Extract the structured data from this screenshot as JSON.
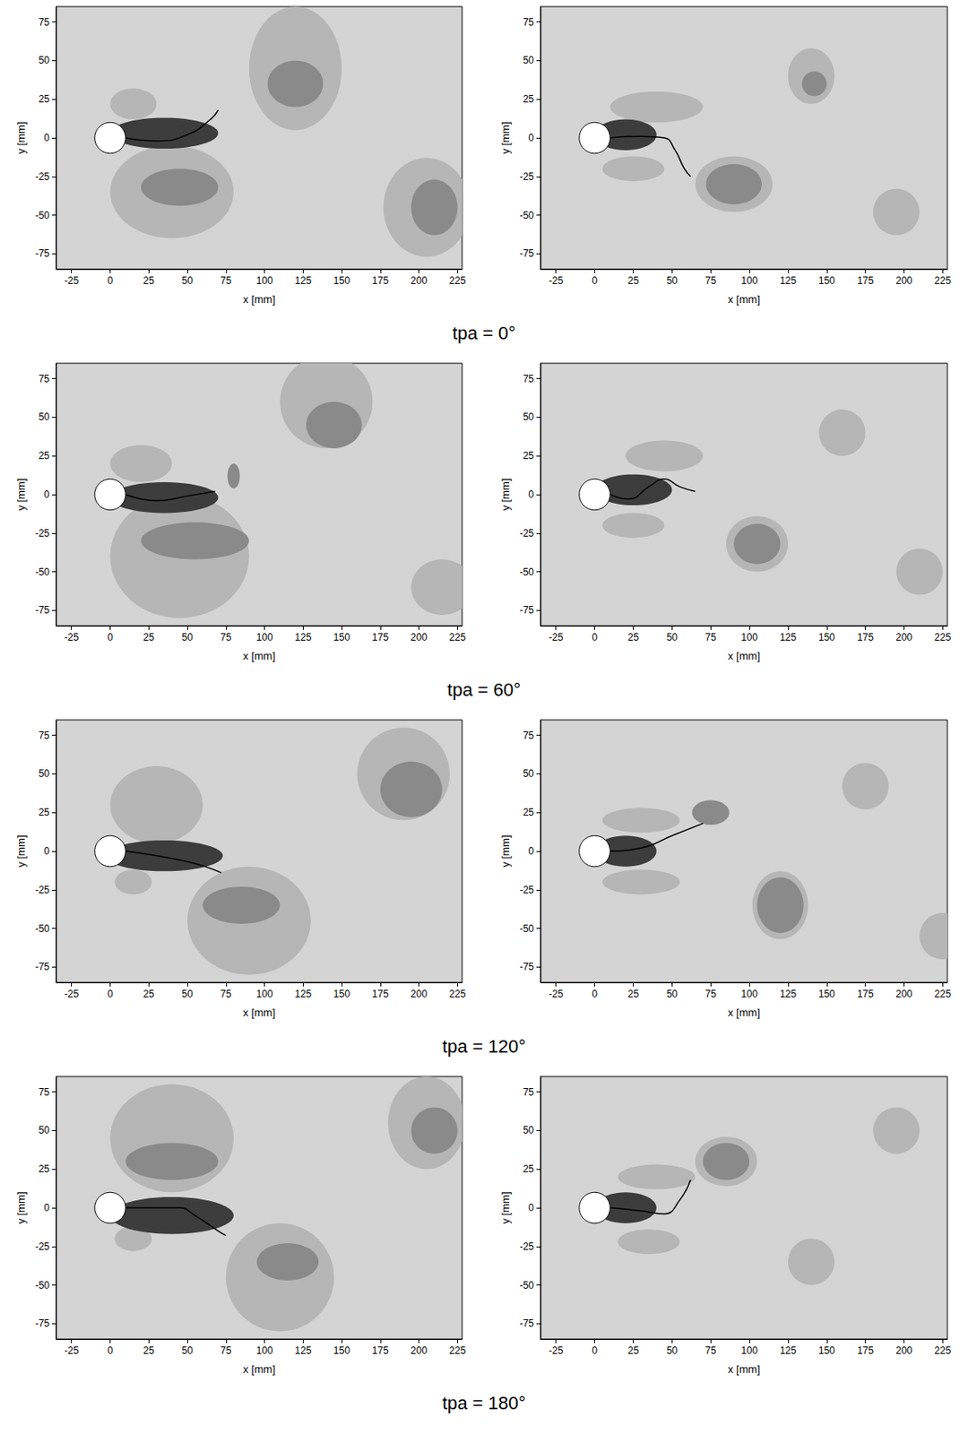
{
  "captions": [
    "tpa = 0°",
    "tpa = 60°",
    "tpa = 120°",
    "tpa = 180°"
  ],
  "chart_data": [
    {
      "type": "contour",
      "xlabel": "x [mm]",
      "ylabel": "y [mm]",
      "xlim": [
        -35,
        228
      ],
      "ylim": [
        -85,
        85
      ],
      "xticks": [
        -25,
        0,
        25,
        50,
        75,
        100,
        125,
        150,
        175,
        200,
        225
      ],
      "yticks": [
        -75,
        -50,
        -25,
        0,
        25,
        50,
        75
      ],
      "grid": false,
      "regions": [
        {
          "cx": 15,
          "cy": 22,
          "rx": 15,
          "ry": 10,
          "level": 1
        },
        {
          "cx": 40,
          "cy": -35,
          "rx": 40,
          "ry": 30,
          "level": 1
        },
        {
          "cx": 45,
          "cy": -32,
          "rx": 25,
          "ry": 12,
          "level": 2
        },
        {
          "cx": 120,
          "cy": 45,
          "rx": 30,
          "ry": 40,
          "level": 1
        },
        {
          "cx": 120,
          "cy": 35,
          "rx": 18,
          "ry": 15,
          "level": 2
        },
        {
          "cx": 205,
          "cy": -45,
          "rx": 28,
          "ry": 32,
          "level": 1
        },
        {
          "cx": 210,
          "cy": -45,
          "rx": 15,
          "ry": 18,
          "level": 2
        },
        {
          "cx": 35,
          "cy": 3,
          "rx": 35,
          "ry": 10,
          "level": 3
        }
      ],
      "cylinder": {
        "x": 0,
        "y": 0,
        "r": 10
      },
      "filament": {
        "x": [
          10,
          30,
          50,
          65,
          70
        ],
        "y": [
          0,
          -2,
          2,
          12,
          18
        ]
      }
    },
    {
      "type": "contour",
      "xlabel": "x [mm]",
      "ylabel": "y [mm]",
      "xlim": [
        -35,
        228
      ],
      "ylim": [
        -85,
        85
      ],
      "xticks": [
        -25,
        0,
        25,
        50,
        75,
        100,
        125,
        150,
        175,
        200,
        225
      ],
      "yticks": [
        -75,
        -50,
        -25,
        0,
        25,
        50,
        75
      ],
      "grid": false,
      "regions": [
        {
          "cx": 40,
          "cy": 20,
          "rx": 30,
          "ry": 10,
          "level": 1
        },
        {
          "cx": 25,
          "cy": -20,
          "rx": 20,
          "ry": 8,
          "level": 1
        },
        {
          "cx": 90,
          "cy": -30,
          "rx": 25,
          "ry": 18,
          "level": 1
        },
        {
          "cx": 90,
          "cy": -30,
          "rx": 18,
          "ry": 13,
          "level": 2
        },
        {
          "cx": 140,
          "cy": 40,
          "rx": 15,
          "ry": 18,
          "level": 1
        },
        {
          "cx": 142,
          "cy": 35,
          "rx": 8,
          "ry": 8,
          "level": 2
        },
        {
          "cx": 195,
          "cy": -48,
          "rx": 15,
          "ry": 15,
          "level": 1
        },
        {
          "cx": 20,
          "cy": 2,
          "rx": 20,
          "ry": 10,
          "level": 3
        }
      ],
      "cylinder": {
        "x": 0,
        "y": 0,
        "r": 10
      },
      "filament": {
        "x": [
          10,
          30,
          45,
          52,
          58,
          62
        ],
        "y": [
          0,
          1,
          0,
          -8,
          -20,
          -25
        ]
      }
    },
    {
      "type": "contour",
      "xlabel": "x [mm]",
      "ylabel": "y [mm]",
      "xlim": [
        -35,
        228
      ],
      "ylim": [
        -85,
        85
      ],
      "xticks": [
        -25,
        0,
        25,
        50,
        75,
        100,
        125,
        150,
        175,
        200,
        225
      ],
      "yticks": [
        -75,
        -50,
        -25,
        0,
        25,
        50,
        75
      ],
      "grid": false,
      "regions": [
        {
          "cx": 20,
          "cy": 20,
          "rx": 20,
          "ry": 12,
          "level": 1
        },
        {
          "cx": 45,
          "cy": -40,
          "rx": 45,
          "ry": 40,
          "level": 1
        },
        {
          "cx": 55,
          "cy": -30,
          "rx": 35,
          "ry": 12,
          "level": 2
        },
        {
          "cx": 140,
          "cy": 60,
          "rx": 30,
          "ry": 30,
          "level": 1
        },
        {
          "cx": 145,
          "cy": 45,
          "rx": 18,
          "ry": 15,
          "level": 2
        },
        {
          "cx": 215,
          "cy": -60,
          "rx": 20,
          "ry": 18,
          "level": 1
        },
        {
          "cx": 80,
          "cy": 12,
          "rx": 4,
          "ry": 8,
          "level": 2
        },
        {
          "cx": 35,
          "cy": -2,
          "rx": 35,
          "ry": 10,
          "level": 3
        }
      ],
      "cylinder": {
        "x": 0,
        "y": 0,
        "r": 10
      },
      "filament": {
        "x": [
          10,
          30,
          50,
          68
        ],
        "y": [
          0,
          -4,
          -1,
          2
        ]
      }
    },
    {
      "type": "contour",
      "xlabel": "x [mm]",
      "ylabel": "y [mm]",
      "xlim": [
        -35,
        228
      ],
      "ylim": [
        -85,
        85
      ],
      "xticks": [
        -25,
        0,
        25,
        50,
        75,
        100,
        125,
        150,
        175,
        200,
        225
      ],
      "yticks": [
        -75,
        -50,
        -25,
        0,
        25,
        50,
        75
      ],
      "grid": false,
      "regions": [
        {
          "cx": 45,
          "cy": 25,
          "rx": 25,
          "ry": 10,
          "level": 1
        },
        {
          "cx": 25,
          "cy": -20,
          "rx": 20,
          "ry": 8,
          "level": 1
        },
        {
          "cx": 105,
          "cy": -32,
          "rx": 20,
          "ry": 18,
          "level": 1
        },
        {
          "cx": 105,
          "cy": -32,
          "rx": 15,
          "ry": 13,
          "level": 2
        },
        {
          "cx": 160,
          "cy": 40,
          "rx": 15,
          "ry": 15,
          "level": 1
        },
        {
          "cx": 210,
          "cy": -50,
          "rx": 15,
          "ry": 15,
          "level": 1
        },
        {
          "cx": 25,
          "cy": 3,
          "rx": 25,
          "ry": 10,
          "level": 3
        }
      ],
      "cylinder": {
        "x": 0,
        "y": 0,
        "r": 10
      },
      "filament": {
        "x": [
          10,
          22,
          35,
          45,
          55,
          65
        ],
        "y": [
          0,
          -3,
          5,
          10,
          5,
          2
        ]
      }
    },
    {
      "type": "contour",
      "xlabel": "x [mm]",
      "ylabel": "y [mm]",
      "xlim": [
        -35,
        228
      ],
      "ylim": [
        -85,
        85
      ],
      "xticks": [
        -25,
        0,
        25,
        50,
        75,
        100,
        125,
        150,
        175,
        200,
        225
      ],
      "yticks": [
        -75,
        -50,
        -25,
        0,
        25,
        50,
        75
      ],
      "grid": false,
      "regions": [
        {
          "cx": 30,
          "cy": 30,
          "rx": 30,
          "ry": 25,
          "level": 1
        },
        {
          "cx": 15,
          "cy": -20,
          "rx": 12,
          "ry": 8,
          "level": 1
        },
        {
          "cx": 90,
          "cy": -45,
          "rx": 40,
          "ry": 35,
          "level": 1
        },
        {
          "cx": 85,
          "cy": -35,
          "rx": 25,
          "ry": 12,
          "level": 2
        },
        {
          "cx": 190,
          "cy": 50,
          "rx": 30,
          "ry": 30,
          "level": 1
        },
        {
          "cx": 195,
          "cy": 40,
          "rx": 20,
          "ry": 18,
          "level": 2
        },
        {
          "cx": 35,
          "cy": -3,
          "rx": 38,
          "ry": 10,
          "level": 3
        }
      ],
      "cylinder": {
        "x": 0,
        "y": 0,
        "r": 10
      },
      "filament": {
        "x": [
          10,
          30,
          55,
          72
        ],
        "y": [
          0,
          -3,
          -8,
          -14
        ]
      }
    },
    {
      "type": "contour",
      "xlabel": "x [mm]",
      "ylabel": "y [mm]",
      "xlim": [
        -35,
        228
      ],
      "ylim": [
        -85,
        85
      ],
      "xticks": [
        -25,
        0,
        25,
        50,
        75,
        100,
        125,
        150,
        175,
        200,
        225
      ],
      "yticks": [
        -75,
        -50,
        -25,
        0,
        25,
        50,
        75
      ],
      "grid": false,
      "regions": [
        {
          "cx": 30,
          "cy": 20,
          "rx": 25,
          "ry": 8,
          "level": 1
        },
        {
          "cx": 30,
          "cy": -20,
          "rx": 25,
          "ry": 8,
          "level": 1
        },
        {
          "cx": 75,
          "cy": 25,
          "rx": 12,
          "ry": 8,
          "level": 2
        },
        {
          "cx": 120,
          "cy": -35,
          "rx": 18,
          "ry": 22,
          "level": 1
        },
        {
          "cx": 120,
          "cy": -35,
          "rx": 15,
          "ry": 18,
          "level": 2
        },
        {
          "cx": 175,
          "cy": 42,
          "rx": 15,
          "ry": 15,
          "level": 1
        },
        {
          "cx": 225,
          "cy": -55,
          "rx": 15,
          "ry": 15,
          "level": 1
        },
        {
          "cx": 20,
          "cy": 0,
          "rx": 20,
          "ry": 10,
          "level": 3
        }
      ],
      "cylinder": {
        "x": 0,
        "y": 0,
        "r": 10
      },
      "filament": {
        "x": [
          10,
          30,
          50,
          70
        ],
        "y": [
          0,
          2,
          10,
          18
        ]
      }
    },
    {
      "type": "contour",
      "xlabel": "x [mm]",
      "ylabel": "y [mm]",
      "xlim": [
        -35,
        228
      ],
      "ylim": [
        -85,
        85
      ],
      "xticks": [
        -25,
        0,
        25,
        50,
        75,
        100,
        125,
        150,
        175,
        200,
        225
      ],
      "yticks": [
        -75,
        -50,
        -25,
        0,
        25,
        50,
        75
      ],
      "grid": false,
      "regions": [
        {
          "cx": 40,
          "cy": 45,
          "rx": 40,
          "ry": 35,
          "level": 1
        },
        {
          "cx": 40,
          "cy": 30,
          "rx": 30,
          "ry": 12,
          "level": 2
        },
        {
          "cx": 15,
          "cy": -20,
          "rx": 12,
          "ry": 8,
          "level": 1
        },
        {
          "cx": 110,
          "cy": -45,
          "rx": 35,
          "ry": 35,
          "level": 1
        },
        {
          "cx": 115,
          "cy": -35,
          "rx": 20,
          "ry": 12,
          "level": 2
        },
        {
          "cx": 205,
          "cy": 55,
          "rx": 25,
          "ry": 30,
          "level": 1
        },
        {
          "cx": 210,
          "cy": 50,
          "rx": 15,
          "ry": 15,
          "level": 2
        },
        {
          "cx": 40,
          "cy": -5,
          "rx": 40,
          "ry": 12,
          "level": 3
        }
      ],
      "cylinder": {
        "x": 0,
        "y": 0,
        "r": 10
      },
      "filament": {
        "x": [
          10,
          30,
          45,
          55,
          70,
          75
        ],
        "y": [
          0,
          0,
          0,
          -5,
          -15,
          -18
        ]
      }
    },
    {
      "type": "contour",
      "xlabel": "x [mm]",
      "ylabel": "y [mm]",
      "xlim": [
        -35,
        228
      ],
      "ylim": [
        -85,
        85
      ],
      "xticks": [
        -25,
        0,
        25,
        50,
        75,
        100,
        125,
        150,
        175,
        200,
        225
      ],
      "yticks": [
        -75,
        -50,
        -25,
        0,
        25,
        50,
        75
      ],
      "grid": false,
      "regions": [
        {
          "cx": 40,
          "cy": 20,
          "rx": 25,
          "ry": 8,
          "level": 1
        },
        {
          "cx": 35,
          "cy": -22,
          "rx": 20,
          "ry": 8,
          "level": 1
        },
        {
          "cx": 85,
          "cy": 30,
          "rx": 20,
          "ry": 16,
          "level": 1
        },
        {
          "cx": 85,
          "cy": 30,
          "rx": 15,
          "ry": 12,
          "level": 2
        },
        {
          "cx": 140,
          "cy": -35,
          "rx": 15,
          "ry": 15,
          "level": 1
        },
        {
          "cx": 195,
          "cy": 50,
          "rx": 15,
          "ry": 15,
          "level": 1
        },
        {
          "cx": 20,
          "cy": 0,
          "rx": 20,
          "ry": 10,
          "level": 3
        }
      ],
      "cylinder": {
        "x": 0,
        "y": 0,
        "r": 10
      },
      "filament": {
        "x": [
          10,
          30,
          45,
          55,
          62
        ],
        "y": [
          0,
          -2,
          -4,
          5,
          18
        ]
      }
    }
  ]
}
